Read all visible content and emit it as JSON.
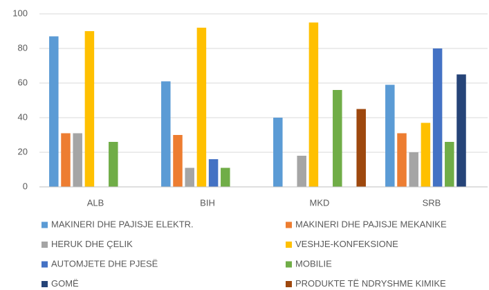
{
  "chart_data": {
    "type": "bar",
    "categories": [
      "ALB",
      "BIH",
      "MKD",
      "SRB"
    ],
    "series": [
      {
        "name": "MAKINERI DHE PAJISJE ELEKTR.",
        "color": "#5b9bd5",
        "values": [
          87,
          61,
          40,
          59
        ]
      },
      {
        "name": "MAKINERI DHE PAJISJE MEKANIKE",
        "color": "#ed7d31",
        "values": [
          31,
          30,
          null,
          31
        ]
      },
      {
        "name": "HERUK DHE ÇELIK",
        "color": "#a5a5a5",
        "values": [
          31,
          11,
          18,
          20
        ]
      },
      {
        "name": "VESHJE-KONFEKSIONE",
        "color": "#ffc000",
        "values": [
          90,
          92,
          95,
          37
        ]
      },
      {
        "name": "AUTOMJETE DHE PJESË",
        "color": "#4472c4",
        "values": [
          null,
          16,
          null,
          80
        ]
      },
      {
        "name": "MOBILIE",
        "color": "#70ad47",
        "values": [
          26,
          11,
          56,
          26
        ]
      },
      {
        "name": "GOMË",
        "color": "#264478",
        "values": [
          null,
          null,
          null,
          65
        ]
      },
      {
        "name": "PRODUKTE TË NDRYSHME KIMIKE",
        "color": "#9e480e",
        "values": [
          null,
          null,
          45,
          null
        ]
      }
    ],
    "ylim": [
      0,
      100
    ],
    "yticks": [
      0,
      20,
      40,
      60,
      80,
      100
    ],
    "grid": true,
    "legend": "bottom"
  }
}
